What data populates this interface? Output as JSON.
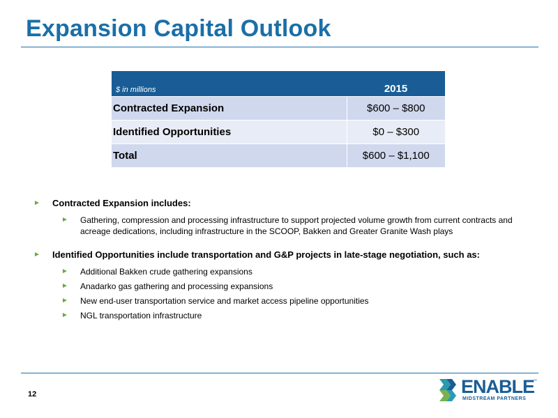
{
  "slide": {
    "title": "Expansion Capital Outlook",
    "page_number": "12"
  },
  "table": {
    "units": "$ in millions",
    "year": "2015",
    "rows": [
      {
        "label": "Contracted Expansion",
        "value": "$600 – $800"
      },
      {
        "label": "Identified Opportunities",
        "value": "$0 – $300"
      },
      {
        "label": "Total",
        "value": "$600 – $1,100"
      }
    ]
  },
  "bullets": [
    {
      "text": "Contracted Expansion includes:",
      "sub": [
        "Gathering, compression and processing infrastructure to support projected volume growth from current contracts and acreage dedications, including infrastructure in the SCOOP, Bakken and Greater Granite Wash plays"
      ]
    },
    {
      "text": "Identified Opportunities include transportation and G&P projects in late-stage negotiation, such as:",
      "sub": [
        "Additional Bakken crude gathering expansions",
        "Anadarko gas gathering and processing expansions",
        "New end-user transportation service and market access pipeline opportunities",
        "NGL transportation infrastructure"
      ]
    }
  ],
  "logo": {
    "name": "ENABLE",
    "tagline": "MIDSTREAM PARTNERS",
    "trademark": "™"
  },
  "colors": {
    "title_blue": "#1a6fa8",
    "header_blue": "#1a5d96",
    "row_dark": "#d0d8ee",
    "row_light": "#e8ecf6",
    "bullet_green": "#6aaa3a",
    "logo_teal": "#2a9ab0"
  },
  "icons": {
    "bullet": "triangle-right-icon",
    "logo": "enable-chevron-logo-icon"
  }
}
